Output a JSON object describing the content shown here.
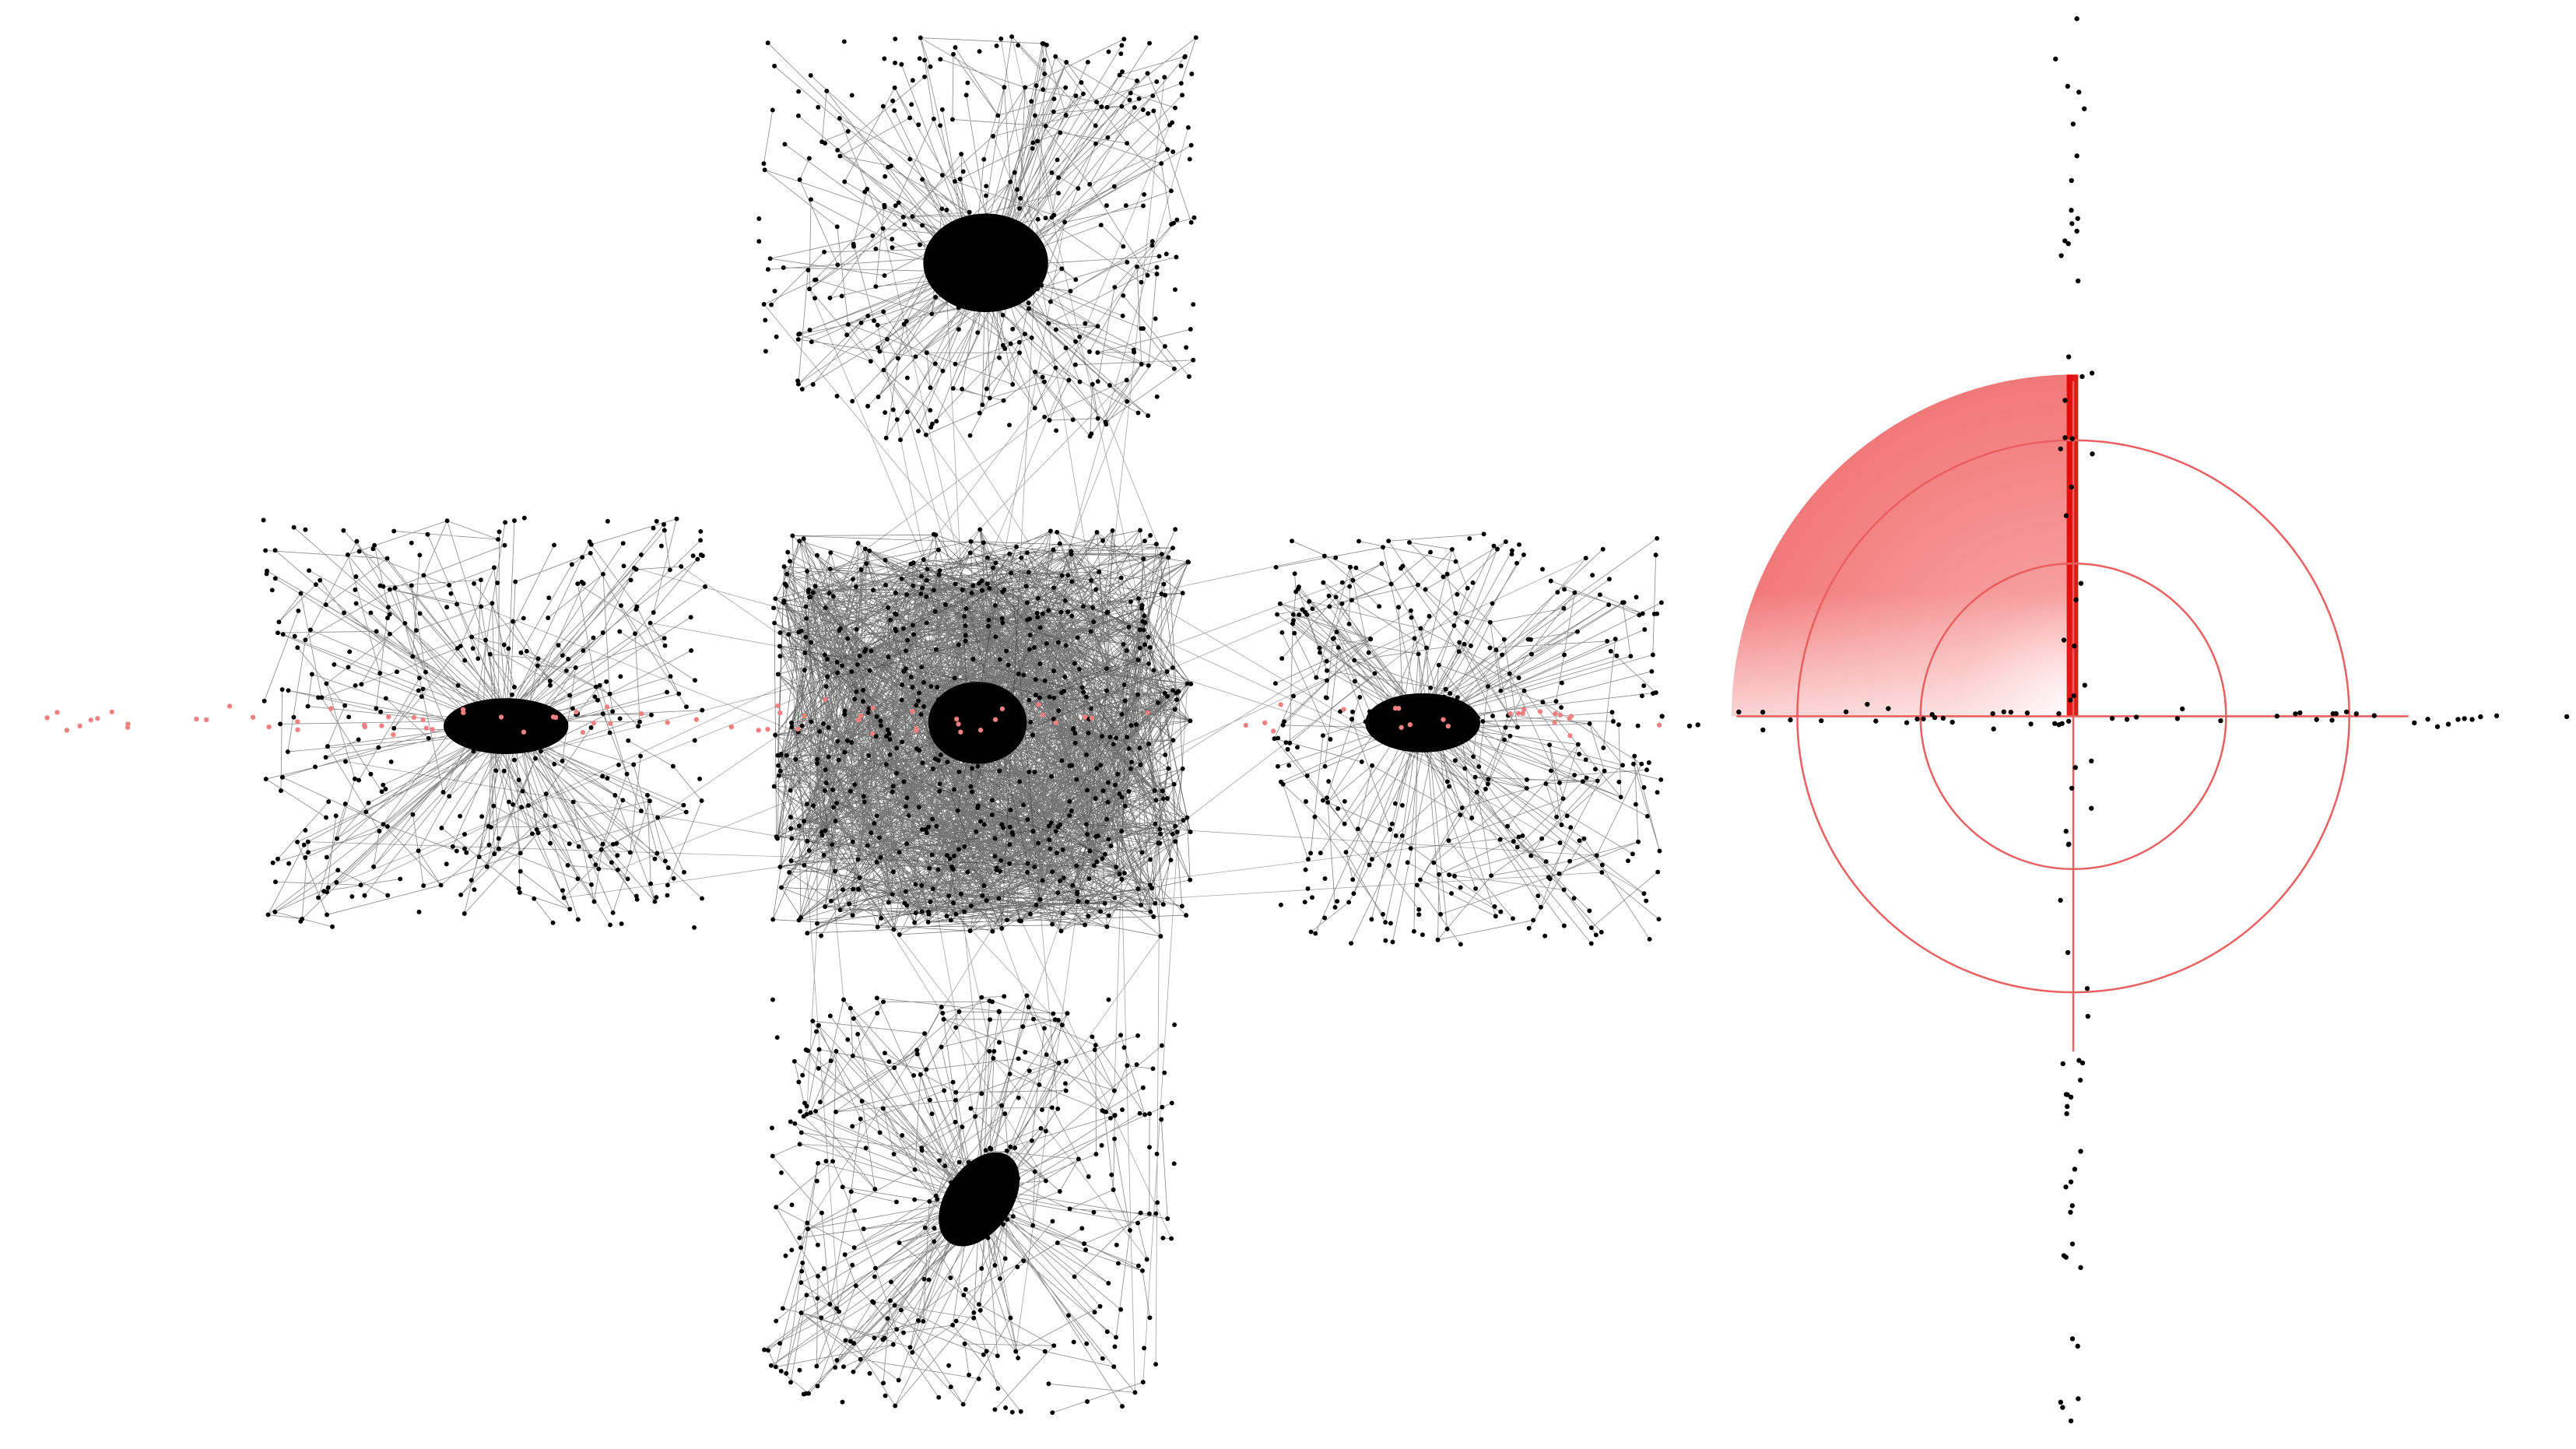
{
  "graph": {
    "background_color": "#ffffff",
    "node_color": "#000000",
    "highlight_node_color": "#f08080",
    "edge_color": "#000000",
    "radar_color": "#e53935",
    "clusters": [
      "top",
      "center",
      "left",
      "right",
      "bottom"
    ],
    "overlay": "radar-polar-target"
  }
}
